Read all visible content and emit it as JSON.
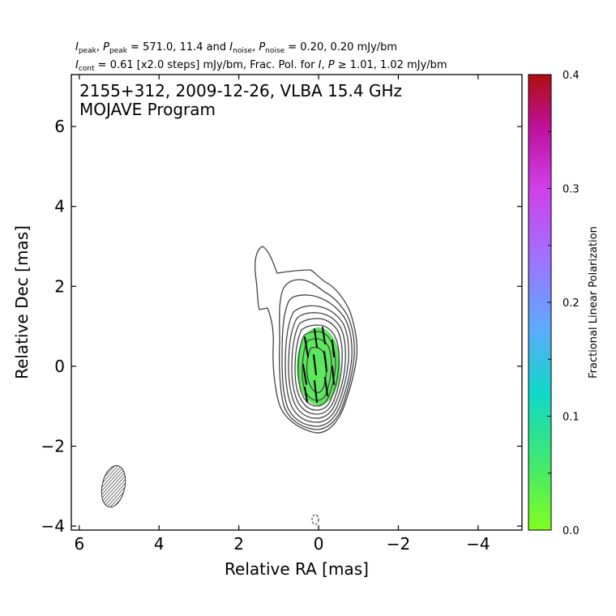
{
  "chart_data": {
    "type": "contour",
    "header": {
      "line1": {
        "i_peak_label": "I",
        "i_peak_sub": "peak",
        "p_peak_label": "P",
        "p_peak_sub": "peak",
        "peak_values": "571.0, 11.4",
        "and_text": "and",
        "i_noise_label": "I",
        "i_noise_sub": "noise",
        "p_noise_label": "P",
        "p_noise_sub": "noise",
        "noise_values": "0.20, 0.20",
        "unit": "mJy/bm"
      },
      "line2": {
        "i_cont_label": "I",
        "i_cont_sub": "cont",
        "cont_text": "= 0.61 [x2.0 steps] mJy/bm, Frac. Pol. for",
        "i_label": "I",
        "p_label": "P",
        "threshold_text": "≥ 1.01, 1.02 mJy/bm"
      }
    },
    "title_line1": "2155+312, 2009-12-26, VLBA 15.4 GHz",
    "title_line2": "MOJAVE Program",
    "xlabel": "Relative RA [mas]",
    "ylabel": "Relative Dec [mas]",
    "xlim": [
      6.2,
      -5.1
    ],
    "ylim": [
      -4.1,
      7.3
    ],
    "x_ticks": [
      6,
      4,
      2,
      0,
      -2,
      -4
    ],
    "x_tick_labels": [
      "6",
      "4",
      "2",
      "0",
      "−2",
      "−4"
    ],
    "y_ticks": [
      6,
      4,
      2,
      0,
      -2,
      -4
    ],
    "y_tick_labels": [
      "6",
      "4",
      "2",
      "0",
      "−2",
      "−4"
    ],
    "contour_levels_mjy": [
      0.61,
      1.22,
      2.44,
      4.88,
      9.76,
      19.5,
      39.0,
      78.1,
      156.2,
      312.3
    ],
    "negative_contour": {
      "x": 0.05,
      "y": -3.85
    },
    "beam": {
      "x": 5.1,
      "y": -3.05,
      "major_mas": 1.05,
      "minor_mas": 0.58,
      "pa_deg": -10
    },
    "core": {
      "x": 0.0,
      "y": 0.0,
      "peak_mjy": 571.0
    },
    "colorbar": {
      "label": "Fractional Linear Polarization",
      "min": 0.0,
      "max": 0.4,
      "ticks": [
        0.0,
        0.1,
        0.2,
        0.3,
        0.4
      ],
      "tick_labels": [
        "0.0",
        "0.1",
        "0.2",
        "0.3",
        "0.4"
      ],
      "minor_ticks": [
        0.05,
        0.15,
        0.25,
        0.35
      ],
      "colors": [
        "#80ff20",
        "#40e870",
        "#10d8c8",
        "#60a8ff",
        "#a070ff",
        "#d040e8",
        "#c010a0",
        "#b00d0d"
      ]
    },
    "polarization_region": {
      "x": 0.0,
      "y": 0.0,
      "frac_pol": 0.03,
      "color": "#5ce85c"
    }
  }
}
